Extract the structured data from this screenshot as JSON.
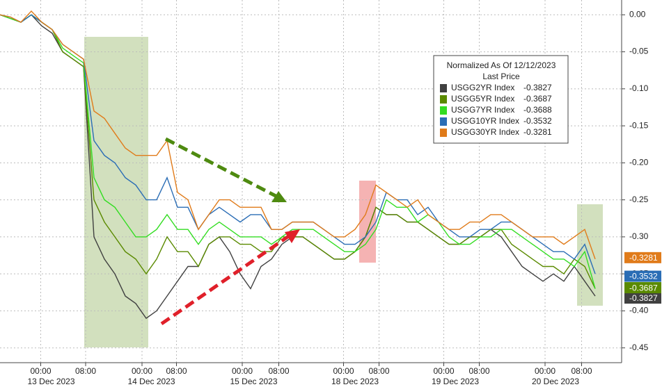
{
  "chart_data": {
    "type": "line",
    "legend_title": "Normalized As Of 12/12/2023",
    "legend_subtitle": "Last Price",
    "xlim": [
      0,
      58
    ],
    "ylim": [
      -0.47,
      0.02
    ],
    "xticks": [
      {
        "value": 3.9,
        "label": "00:00"
      },
      {
        "value": 8.2,
        "label": "08:00"
      },
      {
        "value": 13.6,
        "label": "00:00"
      },
      {
        "value": 16.9,
        "label": "08:00"
      },
      {
        "value": 23.2,
        "label": "00:00"
      },
      {
        "value": 26.7,
        "label": "08:00"
      },
      {
        "value": 32.9,
        "label": "00:00"
      },
      {
        "value": 36.3,
        "label": "08:00"
      },
      {
        "value": 42.5,
        "label": "00:00"
      },
      {
        "value": 45.9,
        "label": "08:00"
      },
      {
        "value": 52.2,
        "label": "00:00"
      },
      {
        "value": 55.7,
        "label": "08:00"
      }
    ],
    "date_labels": [
      {
        "value": 4.9,
        "label": "13 Dec 2023"
      },
      {
        "value": 14.5,
        "label": "14 Dec 2023"
      },
      {
        "value": 24.3,
        "label": "15 Dec 2023"
      },
      {
        "value": 34,
        "label": "18 Dec 2023"
      },
      {
        "value": 43.6,
        "label": "19 Dec 2023"
      },
      {
        "value": 53.2,
        "label": "20 Dec 2023"
      }
    ],
    "yticks": [
      {
        "value": 0,
        "label": "0.00"
      },
      -0.05,
      {
        "value": -0.1,
        "label": "-0.10"
      },
      -0.15,
      {
        "value": -0.2,
        "label": "-0.20"
      },
      -0.25,
      {
        "value": -0.3,
        "label": "-0.30"
      },
      -0.35,
      {
        "value": -0.4,
        "label": "-0.40"
      },
      -0.45
    ],
    "grid": true,
    "series": [
      {
        "name": "USGG2YR Index",
        "color": "#404040",
        "last": -0.3827,
        "values": [
          0,
          -0.005,
          -0.01,
          0.0,
          -0.015,
          -0.025,
          -0.05,
          -0.06,
          -0.07,
          -0.3,
          -0.33,
          -0.35,
          -0.38,
          -0.39,
          -0.41,
          -0.4,
          -0.38,
          -0.36,
          -0.34,
          -0.34,
          -0.31,
          -0.3,
          -0.32,
          -0.35,
          -0.37,
          -0.34,
          -0.33,
          -0.31,
          -0.3,
          -0.3,
          -0.31,
          -0.32,
          -0.33,
          -0.33,
          -0.32,
          -0.3,
          -0.26,
          -0.27,
          -0.27,
          -0.28,
          -0.28,
          -0.29,
          -0.3,
          -0.31,
          -0.31,
          -0.3,
          -0.3,
          -0.29,
          -0.3,
          -0.32,
          -0.34,
          -0.35,
          -0.36,
          -0.35,
          -0.36,
          -0.34,
          -0.36,
          -0.38
        ]
      },
      {
        "name": "USGG5YR Index",
        "color": "#5a8a00",
        "last": -0.3687,
        "values": [
          0,
          -0.005,
          -0.01,
          0.0,
          -0.01,
          -0.02,
          -0.05,
          -0.06,
          -0.07,
          -0.25,
          -0.28,
          -0.3,
          -0.32,
          -0.33,
          -0.35,
          -0.33,
          -0.3,
          -0.32,
          -0.32,
          -0.34,
          -0.31,
          -0.3,
          -0.3,
          -0.31,
          -0.31,
          -0.32,
          -0.32,
          -0.3,
          -0.3,
          -0.3,
          -0.31,
          -0.32,
          -0.33,
          -0.33,
          -0.32,
          -0.3,
          -0.26,
          -0.27,
          -0.27,
          -0.28,
          -0.28,
          -0.29,
          -0.3,
          -0.31,
          -0.31,
          -0.3,
          -0.3,
          -0.29,
          -0.29,
          -0.31,
          -0.32,
          -0.33,
          -0.34,
          -0.34,
          -0.35,
          -0.33,
          -0.34,
          -0.37
        ]
      },
      {
        "name": "USGG7YR Index",
        "color": "#33dd22",
        "last": -0.3688,
        "values": [
          0,
          -0.005,
          -0.01,
          0.0,
          -0.01,
          -0.02,
          -0.045,
          -0.055,
          -0.065,
          -0.22,
          -0.25,
          -0.26,
          -0.28,
          -0.3,
          -0.3,
          -0.29,
          -0.27,
          -0.29,
          -0.29,
          -0.31,
          -0.29,
          -0.28,
          -0.29,
          -0.3,
          -0.3,
          -0.3,
          -0.31,
          -0.3,
          -0.29,
          -0.29,
          -0.29,
          -0.3,
          -0.31,
          -0.32,
          -0.32,
          -0.31,
          -0.29,
          -0.25,
          -0.26,
          -0.26,
          -0.28,
          -0.27,
          -0.28,
          -0.3,
          -0.31,
          -0.31,
          -0.3,
          -0.3,
          -0.29,
          -0.29,
          -0.3,
          -0.31,
          -0.32,
          -0.33,
          -0.33,
          -0.34,
          -0.32,
          -0.37
        ]
      },
      {
        "name": "USGG10YR Index",
        "color": "#2a6db5",
        "last": -0.3532,
        "values": [
          0,
          -0.003,
          -0.01,
          0.0,
          -0.01,
          -0.02,
          -0.04,
          -0.05,
          -0.06,
          -0.17,
          -0.19,
          -0.2,
          -0.22,
          -0.23,
          -0.25,
          -0.25,
          -0.22,
          -0.26,
          -0.26,
          -0.29,
          -0.27,
          -0.26,
          -0.27,
          -0.28,
          -0.27,
          -0.27,
          -0.29,
          -0.29,
          -0.28,
          -0.28,
          -0.28,
          -0.29,
          -0.3,
          -0.31,
          -0.31,
          -0.3,
          -0.28,
          -0.24,
          -0.25,
          -0.25,
          -0.27,
          -0.26,
          -0.28,
          -0.29,
          -0.3,
          -0.3,
          -0.29,
          -0.29,
          -0.28,
          -0.28,
          -0.29,
          -0.3,
          -0.31,
          -0.32,
          -0.32,
          -0.33,
          -0.31,
          -0.35
        ]
      },
      {
        "name": "USGG30YR Index",
        "color": "#e07b1a",
        "last": -0.3281,
        "values": [
          0,
          -0.003,
          -0.01,
          0.005,
          -0.01,
          -0.02,
          -0.04,
          -0.05,
          -0.06,
          -0.13,
          -0.14,
          -0.16,
          -0.18,
          -0.19,
          -0.19,
          -0.19,
          -0.17,
          -0.24,
          -0.25,
          -0.29,
          -0.27,
          -0.25,
          -0.25,
          -0.26,
          -0.26,
          -0.26,
          -0.29,
          -0.29,
          -0.28,
          -0.28,
          -0.28,
          -0.29,
          -0.3,
          -0.3,
          -0.29,
          -0.27,
          -0.23,
          -0.24,
          -0.25,
          -0.26,
          -0.25,
          -0.27,
          -0.28,
          -0.29,
          -0.29,
          -0.28,
          -0.28,
          -0.27,
          -0.27,
          -0.28,
          -0.29,
          -0.3,
          -0.3,
          -0.3,
          -0.31,
          -0.3,
          -0.29,
          -0.33
        ]
      }
    ]
  }
}
